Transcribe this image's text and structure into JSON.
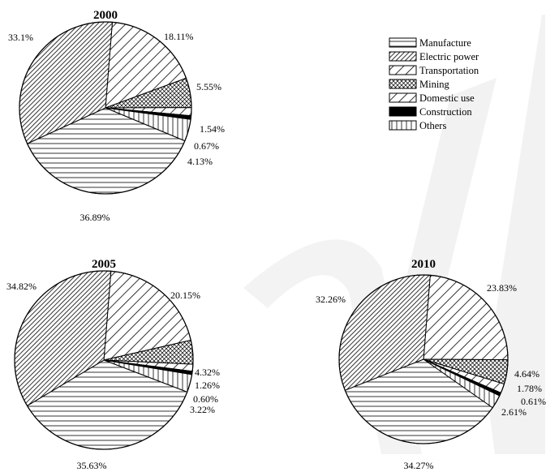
{
  "colors": {
    "ink": "#000000",
    "background": "#ffffff",
    "watermark": "#f2f2f2"
  },
  "watermark_icon": "diagonal-ribbon-watermark",
  "chart_data": {
    "type": "pie",
    "legend": {
      "placement": "right",
      "entries": [
        {
          "key": "manufacture",
          "label": "Manufacture",
          "pattern": "horizontal-lines"
        },
        {
          "key": "electric",
          "label": "Electric power",
          "pattern": "dense-diagonal-lines"
        },
        {
          "key": "transport",
          "label": "Transportation",
          "pattern": "sparse-diagonal-lines"
        },
        {
          "key": "mining",
          "label": "Mining",
          "pattern": "crosshatch"
        },
        {
          "key": "domestic",
          "label": "Domestic use",
          "pattern": "sparse-diagonal-lines"
        },
        {
          "key": "construction",
          "label": "Construction",
          "pattern": "solid-black"
        },
        {
          "key": "others",
          "label": "Others",
          "pattern": "vertical-lines"
        }
      ]
    },
    "charts": [
      {
        "title": "2000",
        "slices": [
          {
            "key": "transport",
            "value": 18.11,
            "label": "18.11%"
          },
          {
            "key": "mining",
            "value": 5.55,
            "label": "5.55%"
          },
          {
            "key": "domestic",
            "value": 1.54,
            "label": "1.54%"
          },
          {
            "key": "construction",
            "value": 0.67,
            "label": "0.67%"
          },
          {
            "key": "others",
            "value": 4.13,
            "label": "4.13%"
          },
          {
            "key": "manufacture",
            "value": 36.89,
            "label": "36.89%"
          },
          {
            "key": "electric",
            "value": 33.1,
            "label": "33.1%"
          }
        ]
      },
      {
        "title": "2005",
        "slices": [
          {
            "key": "transport",
            "value": 20.15,
            "label": "20.15%"
          },
          {
            "key": "mining",
            "value": 4.32,
            "label": "4.32%"
          },
          {
            "key": "domestic",
            "value": 1.26,
            "label": "1.26%"
          },
          {
            "key": "construction",
            "value": 0.6,
            "label": "0.60%"
          },
          {
            "key": "others",
            "value": 3.22,
            "label": "3.22%"
          },
          {
            "key": "manufacture",
            "value": 35.63,
            "label": "35.63%"
          },
          {
            "key": "electric",
            "value": 34.82,
            "label": "34.82%"
          }
        ]
      },
      {
        "title": "2010",
        "slices": [
          {
            "key": "transport",
            "value": 23.83,
            "label": "23.83%"
          },
          {
            "key": "mining",
            "value": 4.64,
            "label": "4.64%"
          },
          {
            "key": "domestic",
            "value": 1.78,
            "label": "1.78%"
          },
          {
            "key": "construction",
            "value": 0.61,
            "label": "0.61%"
          },
          {
            "key": "others",
            "value": 2.61,
            "label": "2.61%"
          },
          {
            "key": "manufacture",
            "value": 34.27,
            "label": "34.27%"
          },
          {
            "key": "electric",
            "value": 32.26,
            "label": "32.26%"
          }
        ]
      }
    ]
  }
}
